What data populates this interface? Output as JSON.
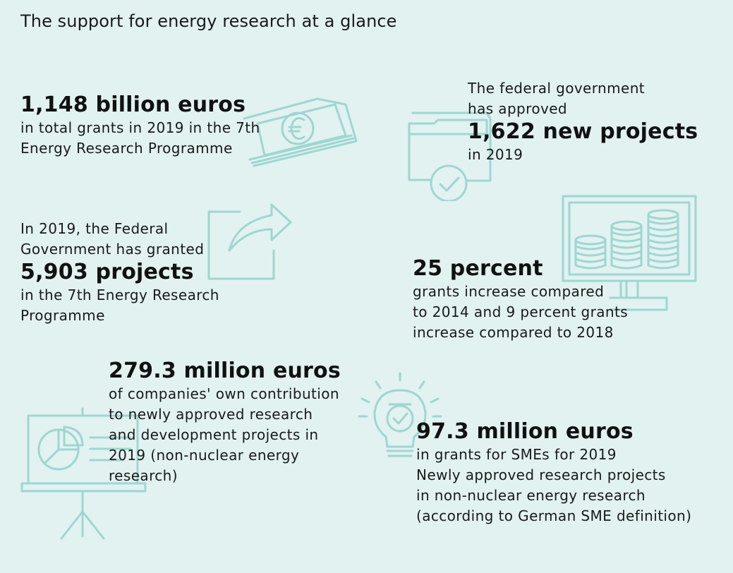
{
  "title": "The support for energy research at a glance",
  "colors": {
    "background": "#e1f2f0",
    "illustration": "#9fd6d2",
    "text": "#111111"
  },
  "facts": [
    {
      "id": "total-grants",
      "highlight": "1,148 billion euros",
      "after": [
        "in total grants in 2019 in the 7th",
        "Energy Research Programme"
      ],
      "icon": "euro-banknotes-icon"
    },
    {
      "id": "new-projects",
      "before": [
        "The federal government",
        "has approved"
      ],
      "highlight": "1,622 new projects",
      "after": [
        "in 2019"
      ],
      "icon": "folder-check-icon"
    },
    {
      "id": "granted-projects",
      "before": [
        "In 2019, the Federal",
        "Government has granted"
      ],
      "highlight": "5,903 projects",
      "after": [
        "in the 7th Energy Research",
        "Programme"
      ],
      "icon": "share-arrow-icon"
    },
    {
      "id": "percent-increase",
      "highlight": "25 percent",
      "after": [
        "grants increase compared",
        "to 2014 and 9 percent grants",
        "increase compared to 2018"
      ],
      "icon": "monitor-coins-chart-icon"
    },
    {
      "id": "own-contribution",
      "highlight": "279.3 million euros",
      "after": [
        "of companies' own contribution",
        "to newly approved research",
        "and development projects in",
        "2019 (non-nuclear energy",
        "research)"
      ],
      "icon": "presentation-board-icon"
    },
    {
      "id": "sme-grants",
      "highlight": "97.3 million euros",
      "after": [
        "in grants for SMEs for 2019",
        "Newly approved research projects",
        "in non-nuclear energy research",
        "(according to German SME definition)"
      ],
      "icon": "lightbulb-check-icon"
    }
  ]
}
